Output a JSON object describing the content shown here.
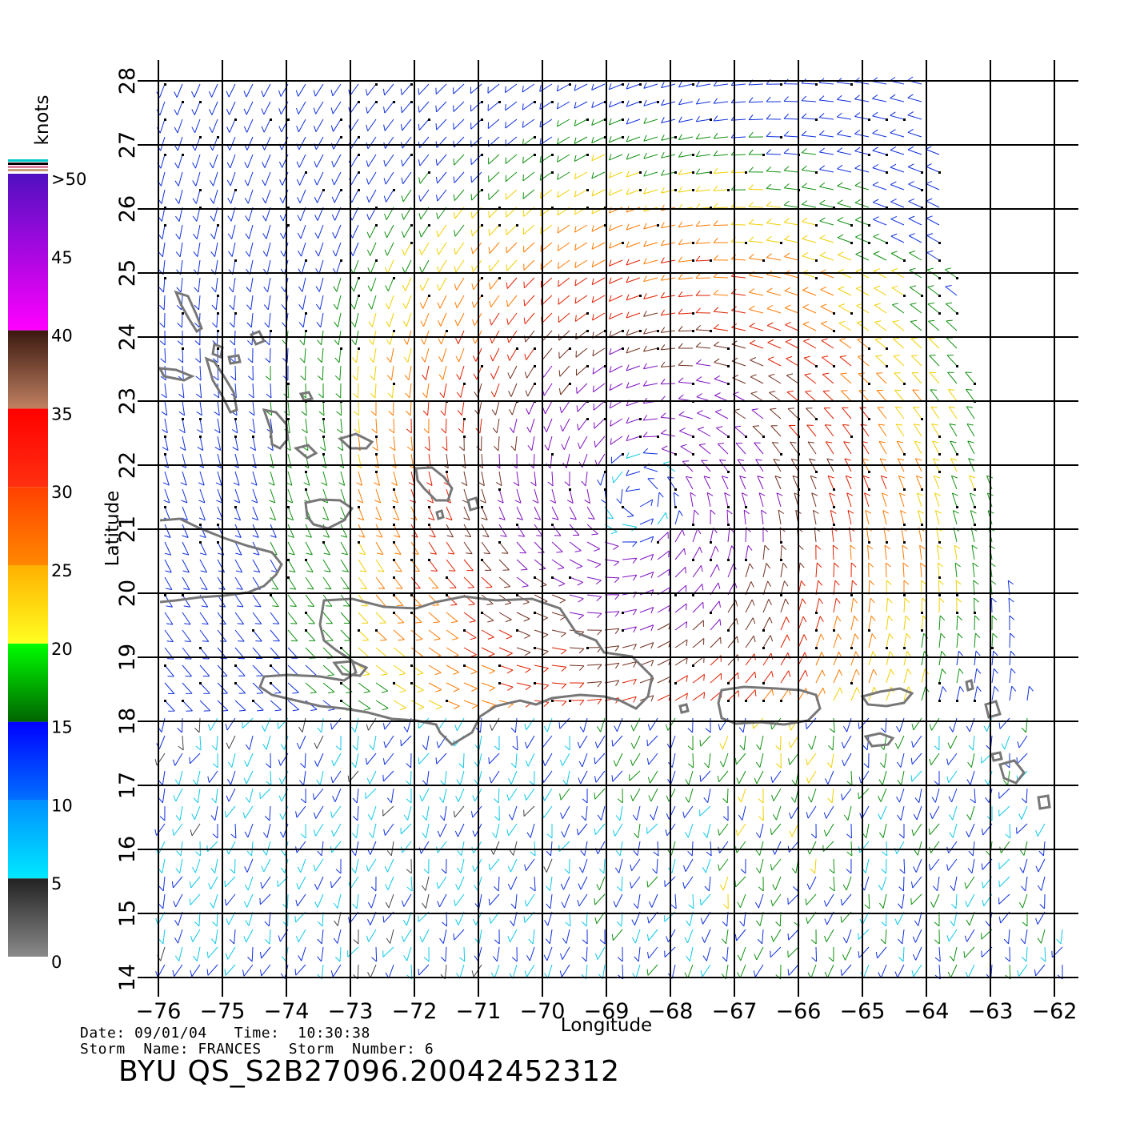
{
  "plot": {
    "x_axis_label": "Longitude",
    "y_axis_label": "Latitude",
    "lon_ticks": [
      "−76",
      "−75",
      "−74",
      "−73",
      "−72",
      "−71",
      "−70",
      "−69",
      "−68",
      "−67",
      "−66",
      "−65",
      "−64",
      "−63",
      "−62"
    ],
    "lat_ticks": [
      "28",
      "27",
      "26",
      "25",
      "24",
      "23",
      "22",
      "21",
      "20",
      "19",
      "18",
      "17",
      "16",
      "15",
      "14"
    ],
    "lon_range": [
      -76,
      -62
    ],
    "lat_range": [
      14,
      28
    ],
    "storm_center": {
      "lon": -68.5,
      "lat": 21.5
    }
  },
  "legend": {
    "unit": "knots",
    "labels": [
      ">50",
      "45",
      "40",
      "35",
      "30",
      "25",
      "20",
      "15",
      "10",
      "5",
      "0"
    ],
    "bands": [
      {
        "from": 0,
        "to": 5,
        "colors": [
          "#8a8a8a",
          "#222222"
        ]
      },
      {
        "from": 5,
        "to": 10,
        "colors": [
          "#00e8ff",
          "#0090ff"
        ]
      },
      {
        "from": 10,
        "to": 15,
        "colors": [
          "#0070ff",
          "#0000ff"
        ]
      },
      {
        "from": 15,
        "to": 20,
        "colors": [
          "#006400",
          "#00ff00"
        ]
      },
      {
        "from": 20,
        "to": 25,
        "colors": [
          "#ffff20",
          "#ffb000"
        ]
      },
      {
        "from": 25,
        "to": 30,
        "colors": [
          "#ff8800",
          "#ff4000"
        ]
      },
      {
        "from": 30,
        "to": 35,
        "colors": [
          "#ff3010",
          "#ff0000"
        ]
      },
      {
        "from": 35,
        "to": 40,
        "colors": [
          "#c08060",
          "#3a1810"
        ]
      },
      {
        "from": 40,
        "to": 50,
        "colors": [
          "#ff00ff",
          "#5010c0"
        ]
      }
    ]
  },
  "footer": {
    "date_label": "Date:",
    "date_value": "09/01/04",
    "time_label": "Time:",
    "time_value": "10:30:38",
    "storm_name_label": "Storm  Name:",
    "storm_name_value": "FRANCES",
    "storm_number_label": "Storm  Number:",
    "storm_number_value": "6",
    "product_id": "BYU  QS_S2B27096.20042452312"
  },
  "colors": {
    "land_outline": "#777777",
    "grid": "#000000"
  }
}
